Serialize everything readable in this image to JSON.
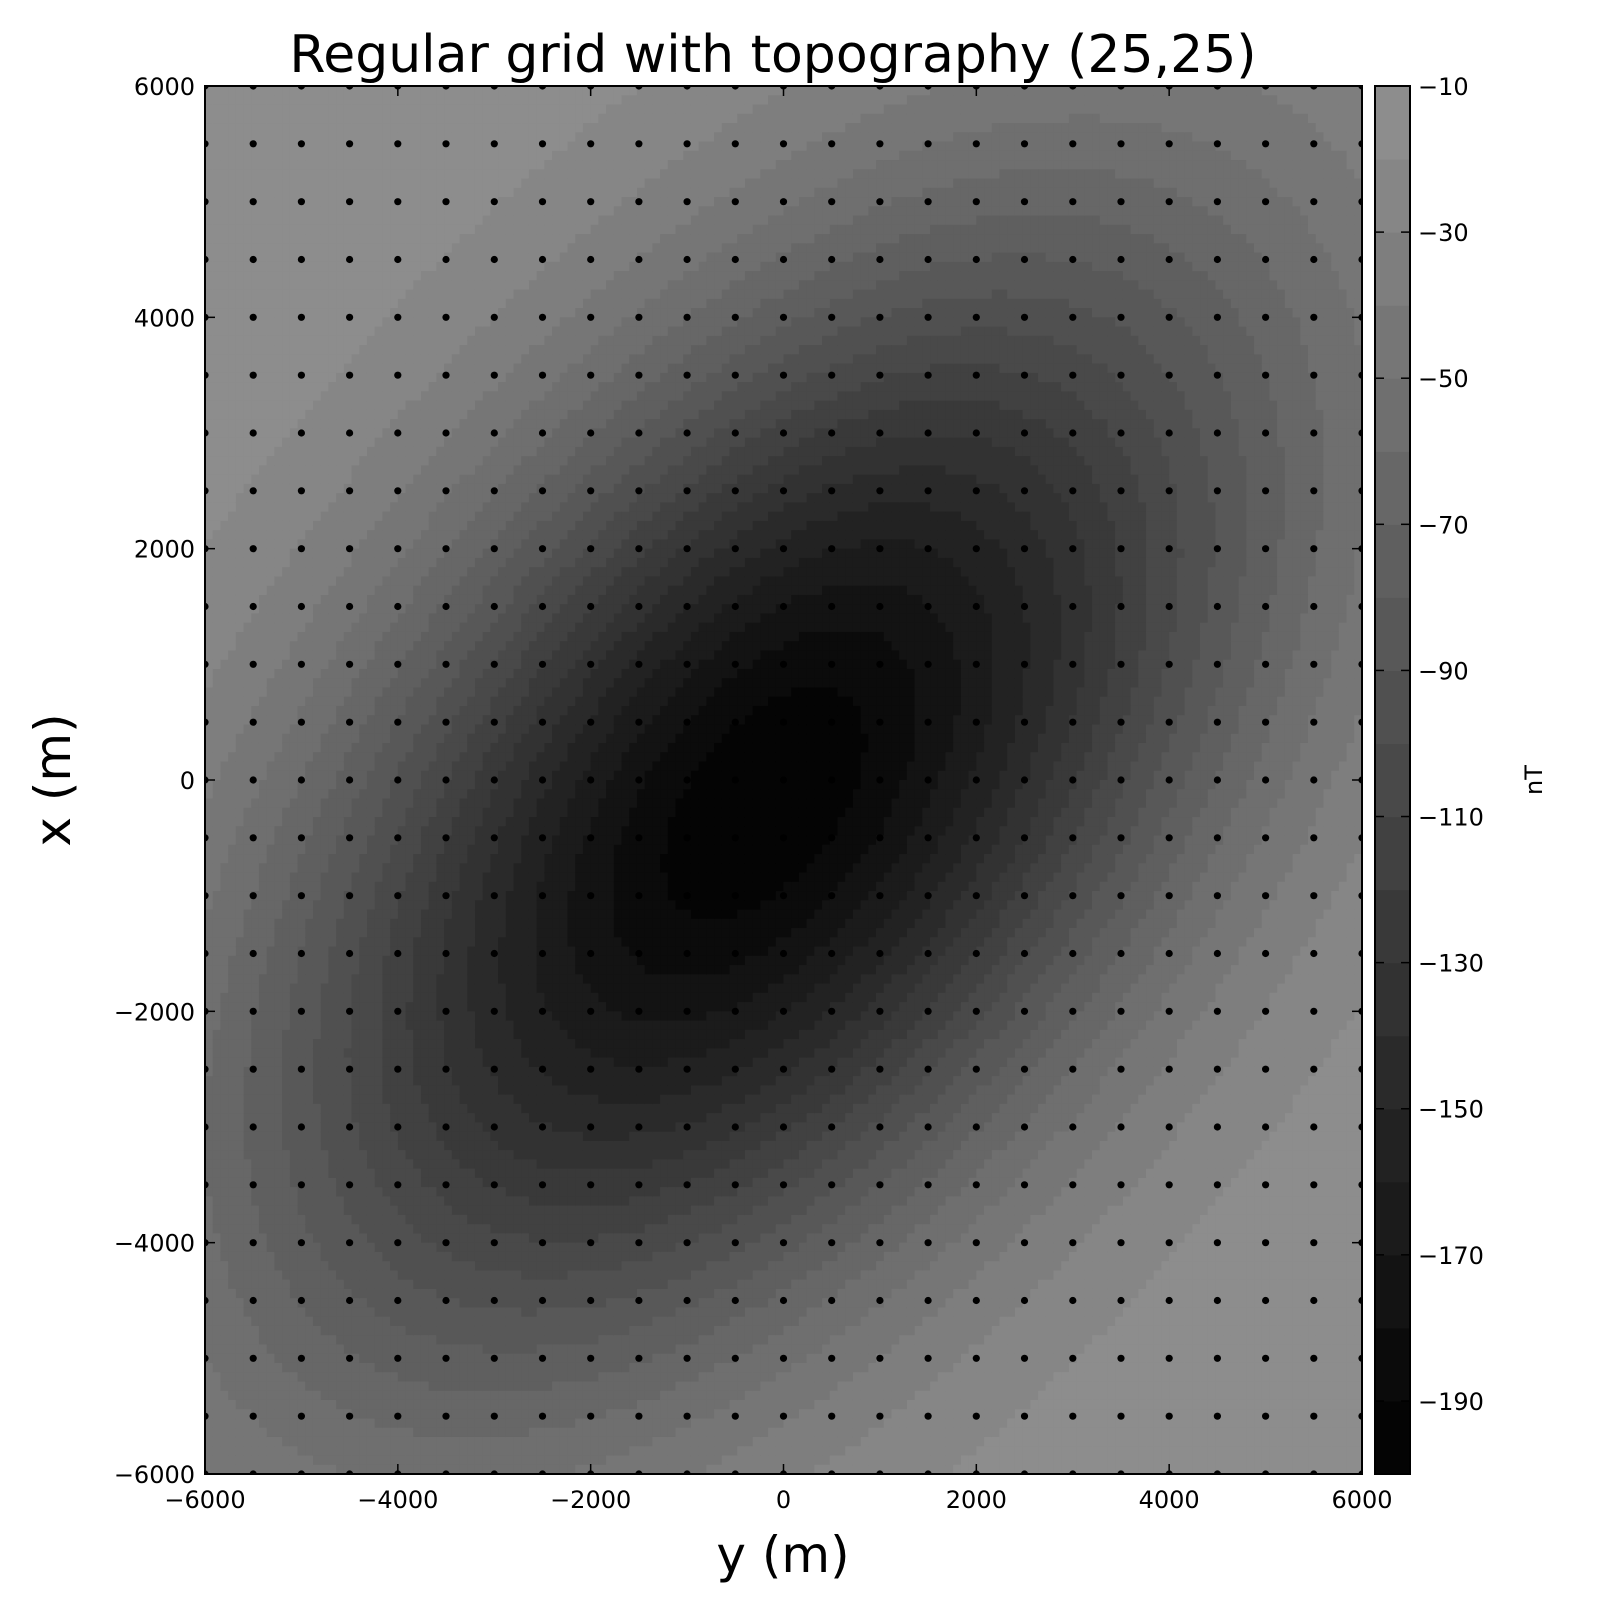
{
  "chart_data": {
    "type": "contour",
    "title": "Regular grid with topography (25,25)",
    "xlabel": "y (m)",
    "ylabel": "x (m)",
    "xlim": [
      -6000,
      6000
    ],
    "ylim": [
      -6000,
      6000
    ],
    "xticks": [
      -6000,
      -4000,
      -2000,
      0,
      2000,
      4000,
      6000
    ],
    "yticks": [
      -6000,
      -4000,
      -2000,
      0,
      2000,
      4000,
      6000
    ],
    "xtick_labels": [
      "−6000",
      "−4000",
      "−2000",
      "0",
      "2000",
      "4000",
      "6000"
    ],
    "ytick_labels": [
      "−6000",
      "−4000",
      "−2000",
      "0",
      "2000",
      "4000",
      "6000"
    ],
    "colorbar": {
      "label": "nT",
      "range": [
        -200,
        -10
      ],
      "ticks": [
        -10,
        -30,
        -50,
        -70,
        -90,
        -110,
        -130,
        -150,
        -170,
        -190
      ],
      "tick_labels": [
        "−10",
        "−30",
        "−50",
        "−70",
        "−90",
        "−110",
        "−130",
        "−150",
        "−170",
        "−190"
      ],
      "level_step": 10,
      "colormap": "gray"
    },
    "grid_points": {
      "shape": [
        25,
        25
      ],
      "spacing": 500,
      "marker_color": "#000000"
    },
    "field": {
      "center": [
        -200,
        -200
      ],
      "minimum": -198,
      "axis_angle_deg": 42,
      "grid": false
    }
  }
}
